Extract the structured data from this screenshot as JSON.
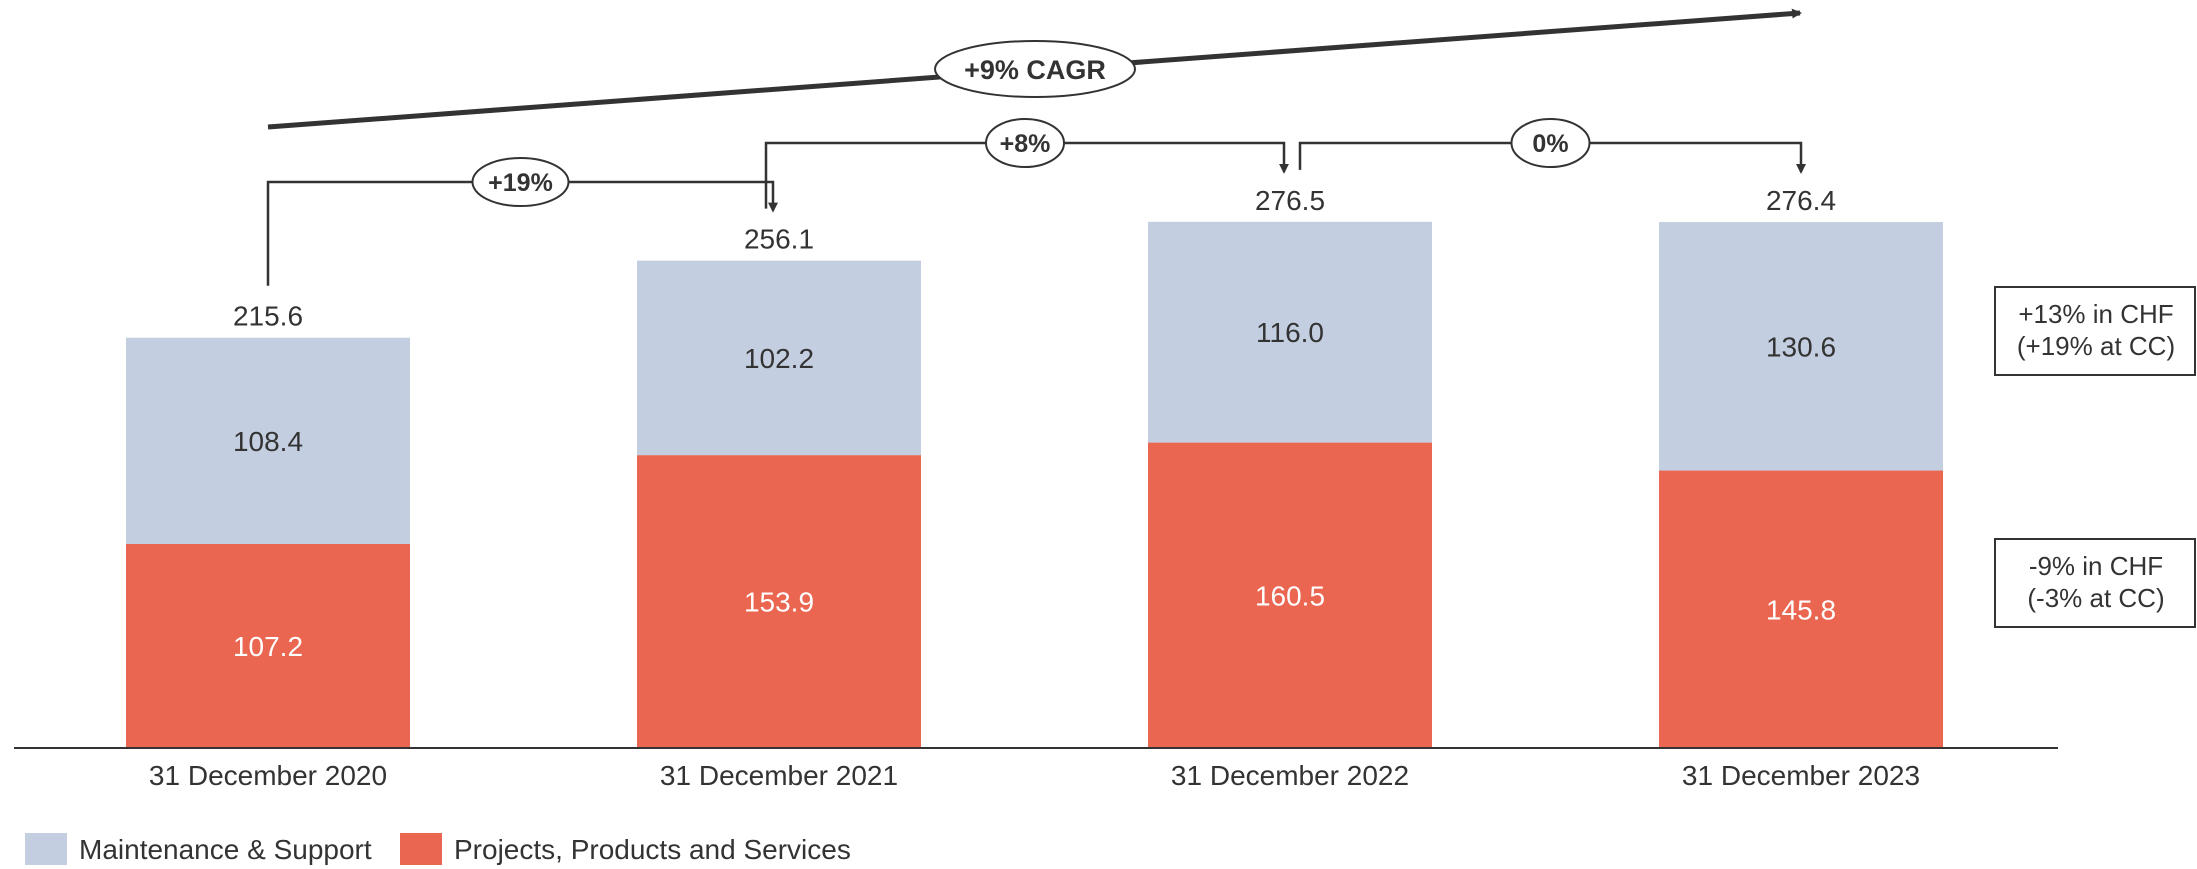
{
  "chart_data": {
    "type": "bar",
    "stacked": true,
    "categories": [
      "31 December 2020",
      "31 December 2021",
      "31 December 2022",
      "31 December 2023"
    ],
    "totals": [
      "215.6",
      "256.1",
      "276.5",
      "276.4"
    ],
    "series": [
      {
        "name": "Projects, Products and Services",
        "color": "#EA6651",
        "values": [
          107.2,
          153.9,
          160.5,
          145.8
        ],
        "labels": [
          "107.2",
          "153.9",
          "160.5",
          "145.8"
        ]
      },
      {
        "name": "Maintenance & Support",
        "color": "#C3CFE0",
        "values": [
          108.4,
          102.2,
          116.0,
          130.6
        ],
        "labels": [
          "108.4",
          "102.2",
          "116.0",
          "130.6"
        ]
      }
    ],
    "growth_labels": [
      {
        "from": 0,
        "to": 1,
        "label": "+19%"
      },
      {
        "from": 1,
        "to": 2,
        "label": "+8%"
      },
      {
        "from": 2,
        "to": 3,
        "label": "0%"
      }
    ],
    "cagr_label": "+9% CAGR",
    "side_notes": [
      {
        "series": "Maintenance & Support",
        "lines": [
          "+13% in CHF",
          "(+19% at CC)"
        ]
      },
      {
        "series": "Projects, Products and Services",
        "lines": [
          "-9% in CHF",
          "(-3% at CC)"
        ]
      }
    ],
    "legend": [
      "Maintenance & Support",
      "Projects, Products and Services"
    ],
    "legend_position": "bottom-left",
    "grid": false,
    "ylim": [
      0,
      290
    ]
  }
}
